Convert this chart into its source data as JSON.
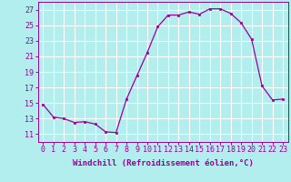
{
  "x": [
    0,
    1,
    2,
    3,
    4,
    5,
    6,
    7,
    8,
    9,
    10,
    11,
    12,
    13,
    14,
    15,
    16,
    17,
    18,
    19,
    20,
    21,
    22,
    23
  ],
  "y": [
    14.8,
    13.2,
    13.0,
    12.5,
    12.6,
    12.3,
    11.3,
    11.2,
    15.5,
    18.5,
    21.5,
    24.8,
    26.3,
    26.3,
    26.7,
    26.4,
    27.1,
    27.1,
    26.5,
    25.3,
    23.2,
    17.2,
    15.4,
    15.5
  ],
  "line_color": "#990099",
  "marker_color": "#990099",
  "bg_color": "#b2eeee",
  "grid_color": "#ffffff",
  "xlabel": "Windchill (Refroidissement éolien,°C)",
  "ylim": [
    10,
    28
  ],
  "xlim": [
    -0.5,
    23.5
  ],
  "yticks": [
    11,
    13,
    15,
    17,
    19,
    21,
    23,
    25,
    27
  ],
  "xticks": [
    0,
    1,
    2,
    3,
    4,
    5,
    6,
    7,
    8,
    9,
    10,
    11,
    12,
    13,
    14,
    15,
    16,
    17,
    18,
    19,
    20,
    21,
    22,
    23
  ],
  "xlabel_fontsize": 6.5,
  "tick_fontsize": 6.0,
  "marker_size": 2.0,
  "line_width": 0.9
}
